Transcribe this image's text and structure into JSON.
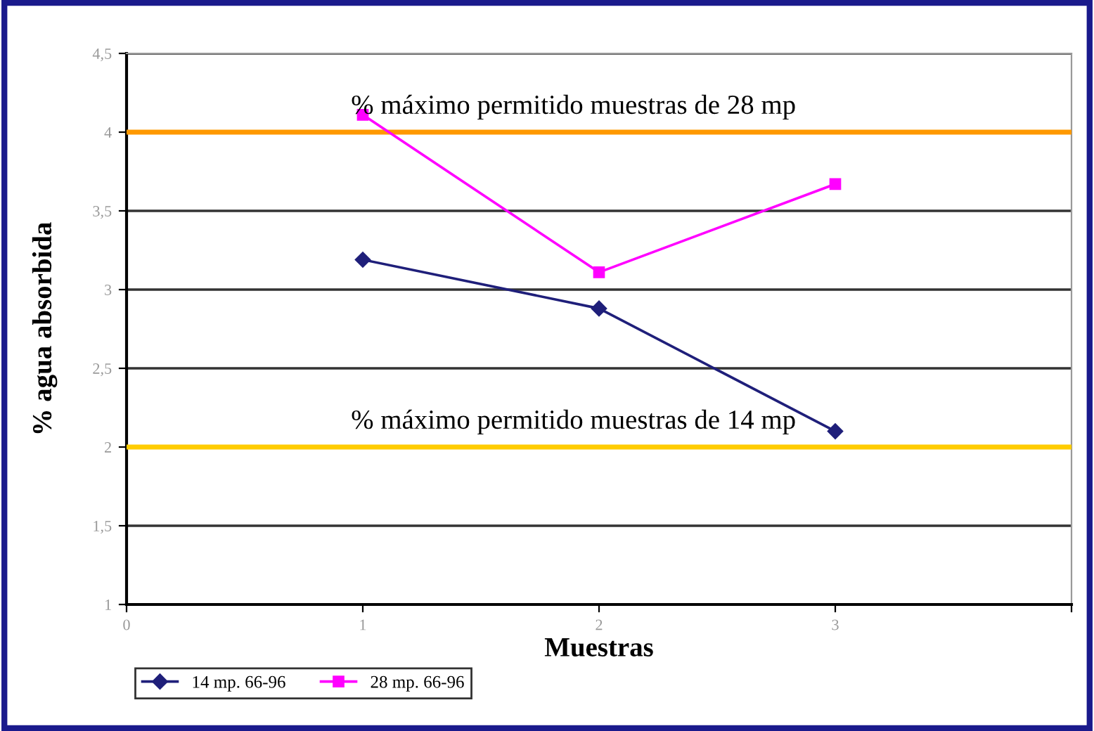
{
  "chart_data": {
    "type": "line",
    "xlabel": "Muestras",
    "ylabel": "% agua absorbida",
    "x": [
      1,
      2,
      3
    ],
    "series": [
      {
        "name": "14 mp. 66-96",
        "color": "#1f1f7a",
        "marker": "diamond",
        "values": [
          3.19,
          2.88,
          2.1
        ]
      },
      {
        "name": "28 mp. 66-96",
        "color": "#ff00ff",
        "marker": "square",
        "values": [
          4.11,
          3.11,
          3.67
        ]
      }
    ],
    "xlim": [
      0,
      4
    ],
    "xticks": [
      0,
      1,
      2,
      3,
      {
        "value": 4,
        "label": null
      }
    ],
    "ylim": [
      1,
      4.5
    ],
    "yticks": [
      1,
      {
        "value": 1.5,
        "label": "1,5"
      },
      2,
      {
        "value": 2.5,
        "label": "2,5"
      },
      3,
      {
        "value": 3.5,
        "label": "3,5"
      },
      4,
      {
        "value": 4.5,
        "label": "4,5"
      }
    ],
    "ref_lines": [
      {
        "axis": "y",
        "value": 4,
        "label": "% máximo permitido muestras de 28 mp",
        "color": "#ff9900"
      },
      {
        "axis": "y",
        "value": 2,
        "label": "% máximo permitido muestras de 14 mp",
        "color": "#ffcc00"
      }
    ],
    "grid": "y",
    "legend": "bottom",
    "line_style": "solid"
  }
}
